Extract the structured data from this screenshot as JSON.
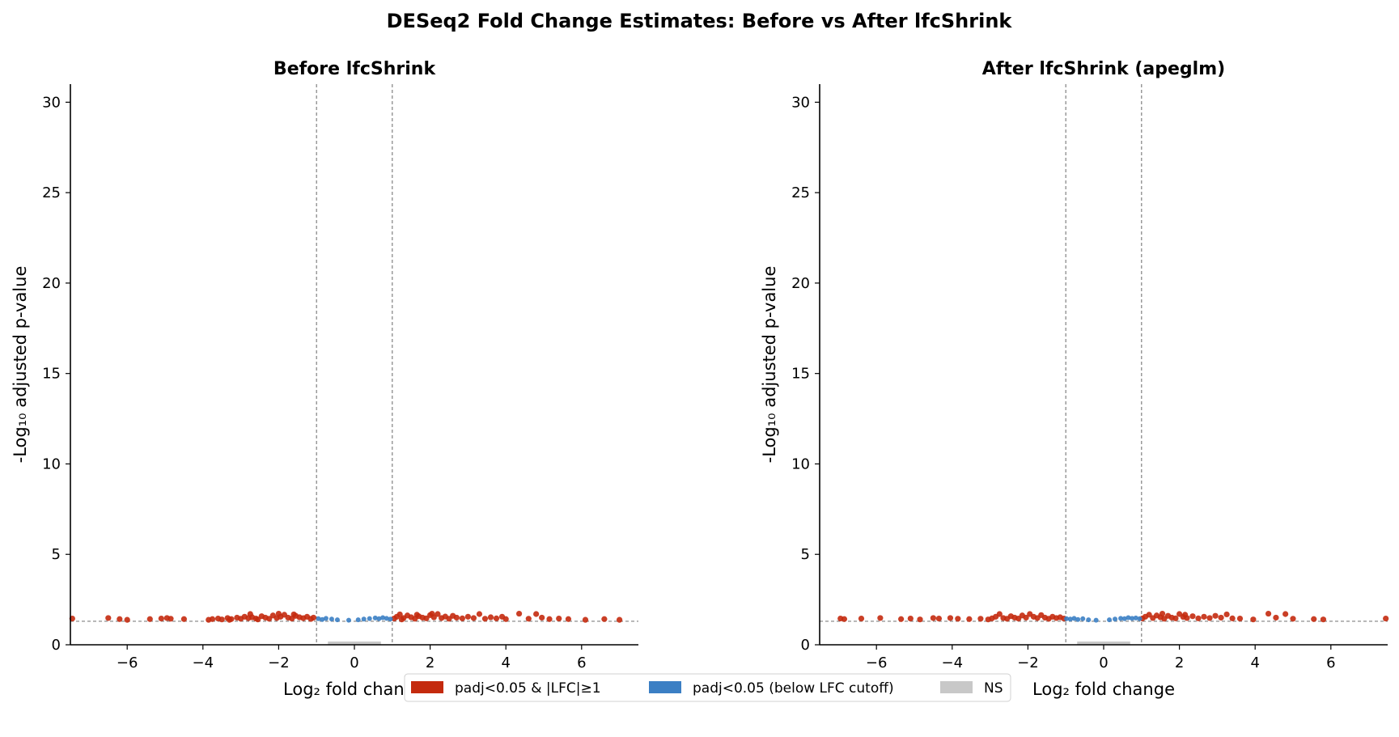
{
  "figure": {
    "title": "DESeq2 Fold Change Estimates: Before vs After lfcShrink"
  },
  "colors": {
    "sig_lfc": "#c42a0e",
    "sig_only": "#3b7fc4",
    "ns": "#c8c8c8",
    "threshold": "#808080",
    "axis": "#000000"
  },
  "legend": {
    "placement": "bottom-center",
    "items": [
      {
        "label": "padj<0.05 & |LFC|≥1",
        "color": "#c42a0e"
      },
      {
        "label": "padj<0.05 (below LFC cutoff)",
        "color": "#3b7fc4"
      },
      {
        "label": "NS",
        "color": "#c8c8c8"
      }
    ]
  },
  "chart_data": [
    {
      "type": "scatter",
      "title": "Before lfcShrink",
      "xlabel": "Log₂ fold change",
      "ylabel": "-Log₁₀ adjusted p-value",
      "xlim": [
        -7.5,
        7.5
      ],
      "ylim": [
        0,
        31
      ],
      "xticks": [
        -6,
        -4,
        -2,
        0,
        2,
        4,
        6
      ],
      "xtick_labels": [
        "−6",
        "−4",
        "−2",
        "0",
        "2",
        "4",
        "6"
      ],
      "yticks": [
        0,
        5,
        10,
        15,
        20,
        25,
        30
      ],
      "ytick_labels": [
        "0",
        "5",
        "10",
        "15",
        "20",
        "25",
        "30"
      ],
      "grid": false,
      "thresholds": {
        "lfc": [
          -1,
          1
        ],
        "padj_line": 1.301
      },
      "series": [
        {
          "name": "padj<0.05 & |LFC|≥1",
          "color": "#c42a0e",
          "points": [
            [
              -7.45,
              1.45
            ],
            [
              -6.5,
              1.48
            ],
            [
              -6.2,
              1.42
            ],
            [
              -6.0,
              1.38
            ],
            [
              -5.4,
              1.42
            ],
            [
              -5.1,
              1.45
            ],
            [
              -4.95,
              1.48
            ],
            [
              -4.85,
              1.44
            ],
            [
              -4.5,
              1.42
            ],
            [
              -3.85,
              1.38
            ],
            [
              -3.75,
              1.42
            ],
            [
              -3.6,
              1.45
            ],
            [
              -3.5,
              1.4
            ],
            [
              -3.35,
              1.48
            ],
            [
              -3.25,
              1.42
            ],
            [
              -3.1,
              1.5
            ],
            [
              -3.0,
              1.44
            ],
            [
              -2.9,
              1.55
            ],
            [
              -2.8,
              1.47
            ],
            [
              -2.7,
              1.52
            ],
            [
              -2.6,
              1.45
            ],
            [
              -2.55,
              1.4
            ],
            [
              -2.45,
              1.58
            ],
            [
              -2.35,
              1.5
            ],
            [
              -2.25,
              1.44
            ],
            [
              -2.15,
              1.62
            ],
            [
              -2.05,
              1.48
            ],
            [
              -1.95,
              1.55
            ],
            [
              -1.85,
              1.66
            ],
            [
              -1.75,
              1.5
            ],
            [
              -1.65,
              1.45
            ],
            [
              -1.55,
              1.6
            ],
            [
              -1.45,
              1.52
            ],
            [
              -1.35,
              1.47
            ],
            [
              -1.25,
              1.55
            ],
            [
              -1.15,
              1.43
            ],
            [
              -1.08,
              1.5
            ],
            [
              -2.75,
              1.7
            ],
            [
              -2.0,
              1.72
            ],
            [
              -1.6,
              1.68
            ],
            [
              -3.3,
              1.38
            ],
            [
              1.05,
              1.45
            ],
            [
              1.12,
              1.55
            ],
            [
              1.2,
              1.68
            ],
            [
              1.3,
              1.48
            ],
            [
              1.4,
              1.62
            ],
            [
              1.5,
              1.52
            ],
            [
              1.6,
              1.44
            ],
            [
              1.7,
              1.58
            ],
            [
              1.8,
              1.5
            ],
            [
              1.9,
              1.46
            ],
            [
              2.0,
              1.64
            ],
            [
              2.1,
              1.52
            ],
            [
              2.2,
              1.7
            ],
            [
              2.3,
              1.48
            ],
            [
              2.4,
              1.56
            ],
            [
              2.5,
              1.44
            ],
            [
              2.6,
              1.6
            ],
            [
              2.7,
              1.5
            ],
            [
              2.85,
              1.46
            ],
            [
              3.0,
              1.55
            ],
            [
              3.15,
              1.48
            ],
            [
              3.3,
              1.7
            ],
            [
              3.45,
              1.44
            ],
            [
              3.6,
              1.52
            ],
            [
              3.75,
              1.46
            ],
            [
              3.9,
              1.55
            ],
            [
              4.0,
              1.42
            ],
            [
              4.35,
              1.72
            ],
            [
              4.6,
              1.44
            ],
            [
              4.8,
              1.7
            ],
            [
              4.95,
              1.5
            ],
            [
              5.15,
              1.42
            ],
            [
              5.4,
              1.45
            ],
            [
              5.65,
              1.42
            ],
            [
              6.1,
              1.38
            ],
            [
              6.6,
              1.42
            ],
            [
              7.0,
              1.38
            ],
            [
              1.25,
              1.4
            ],
            [
              2.05,
              1.72
            ],
            [
              1.65,
              1.66
            ]
          ]
        },
        {
          "name": "padj<0.05 (below LFC cutoff)",
          "color": "#3b7fc4",
          "points": [
            [
              -0.95,
              1.44
            ],
            [
              -0.85,
              1.4
            ],
            [
              -0.75,
              1.46
            ],
            [
              -0.6,
              1.42
            ],
            [
              -0.45,
              1.38
            ],
            [
              -0.15,
              1.36
            ],
            [
              0.1,
              1.38
            ],
            [
              0.25,
              1.42
            ],
            [
              0.4,
              1.45
            ],
            [
              0.55,
              1.48
            ],
            [
              0.65,
              1.44
            ],
            [
              0.75,
              1.5
            ],
            [
              0.85,
              1.46
            ],
            [
              0.95,
              1.42
            ]
          ]
        },
        {
          "name": "NS",
          "color": "#c8c8c8",
          "points": []
        }
      ]
    },
    {
      "type": "scatter",
      "title": "After lfcShrink (apeglm)",
      "xlabel": "Log₂ fold change",
      "ylabel": "-Log₁₀ adjusted p-value",
      "xlim": [
        -7.5,
        7.5
      ],
      "ylim": [
        0,
        31
      ],
      "xticks": [
        -6,
        -4,
        -2,
        0,
        2,
        4,
        6
      ],
      "xtick_labels": [
        "−6",
        "−4",
        "−2",
        "0",
        "2",
        "4",
        "6"
      ],
      "yticks": [
        0,
        5,
        10,
        15,
        20,
        25,
        30
      ],
      "ytick_labels": [
        "0",
        "5",
        "10",
        "15",
        "20",
        "25",
        "30"
      ],
      "grid": false,
      "thresholds": {
        "lfc": [
          -1,
          1
        ],
        "padj_line": 1.301
      },
      "series": [
        {
          "name": "padj<0.05 & |LFC|≥1",
          "color": "#c42a0e",
          "points": [
            [
              -6.95,
              1.45
            ],
            [
              -6.85,
              1.42
            ],
            [
              -6.4,
              1.45
            ],
            [
              -5.9,
              1.48
            ],
            [
              -5.35,
              1.42
            ],
            [
              -5.1,
              1.45
            ],
            [
              -4.85,
              1.4
            ],
            [
              -4.5,
              1.48
            ],
            [
              -4.35,
              1.45
            ],
            [
              -4.05,
              1.48
            ],
            [
              -3.85,
              1.44
            ],
            [
              -3.55,
              1.42
            ],
            [
              -3.05,
              1.4
            ],
            [
              -2.95,
              1.46
            ],
            [
              -2.85,
              1.55
            ],
            [
              -2.75,
              1.7
            ],
            [
              -2.65,
              1.48
            ],
            [
              -2.55,
              1.44
            ],
            [
              -2.45,
              1.58
            ],
            [
              -2.35,
              1.5
            ],
            [
              -2.25,
              1.45
            ],
            [
              -2.15,
              1.62
            ],
            [
              -2.05,
              1.5
            ],
            [
              -1.95,
              1.7
            ],
            [
              -1.85,
              1.55
            ],
            [
              -1.75,
              1.48
            ],
            [
              -1.65,
              1.64
            ],
            [
              -1.55,
              1.5
            ],
            [
              -1.45,
              1.44
            ],
            [
              -1.35,
              1.55
            ],
            [
              -1.25,
              1.48
            ],
            [
              -1.15,
              1.52
            ],
            [
              -1.05,
              1.45
            ],
            [
              -3.25,
              1.44
            ],
            [
              1.02,
              1.45
            ],
            [
              1.1,
              1.55
            ],
            [
              1.2,
              1.66
            ],
            [
              1.3,
              1.48
            ],
            [
              1.4,
              1.62
            ],
            [
              1.5,
              1.52
            ],
            [
              1.6,
              1.44
            ],
            [
              1.7,
              1.6
            ],
            [
              1.8,
              1.5
            ],
            [
              1.9,
              1.46
            ],
            [
              2.0,
              1.7
            ],
            [
              2.1,
              1.54
            ],
            [
              2.2,
              1.48
            ],
            [
              2.35,
              1.58
            ],
            [
              2.5,
              1.46
            ],
            [
              2.65,
              1.55
            ],
            [
              2.8,
              1.48
            ],
            [
              2.95,
              1.6
            ],
            [
              3.1,
              1.5
            ],
            [
              3.25,
              1.68
            ],
            [
              3.4,
              1.46
            ],
            [
              3.6,
              1.45
            ],
            [
              3.95,
              1.4
            ],
            [
              4.35,
              1.72
            ],
            [
              4.55,
              1.5
            ],
            [
              4.8,
              1.7
            ],
            [
              5.0,
              1.44
            ],
            [
              5.55,
              1.42
            ],
            [
              5.8,
              1.4
            ],
            [
              7.45,
              1.45
            ],
            [
              1.55,
              1.72
            ],
            [
              2.15,
              1.66
            ]
          ]
        },
        {
          "name": "padj<0.05 (below LFC cutoff)",
          "color": "#3b7fc4",
          "points": [
            [
              -0.98,
              1.44
            ],
            [
              -0.88,
              1.42
            ],
            [
              -0.78,
              1.46
            ],
            [
              -0.68,
              1.4
            ],
            [
              -0.55,
              1.44
            ],
            [
              -0.4,
              1.38
            ],
            [
              -0.2,
              1.36
            ],
            [
              0.15,
              1.38
            ],
            [
              0.3,
              1.42
            ],
            [
              0.45,
              1.46
            ],
            [
              0.55,
              1.44
            ],
            [
              0.65,
              1.5
            ],
            [
              0.75,
              1.46
            ],
            [
              0.85,
              1.48
            ],
            [
              0.95,
              1.44
            ]
          ]
        },
        {
          "name": "NS",
          "color": "#c8c8c8",
          "points": []
        }
      ]
    }
  ]
}
